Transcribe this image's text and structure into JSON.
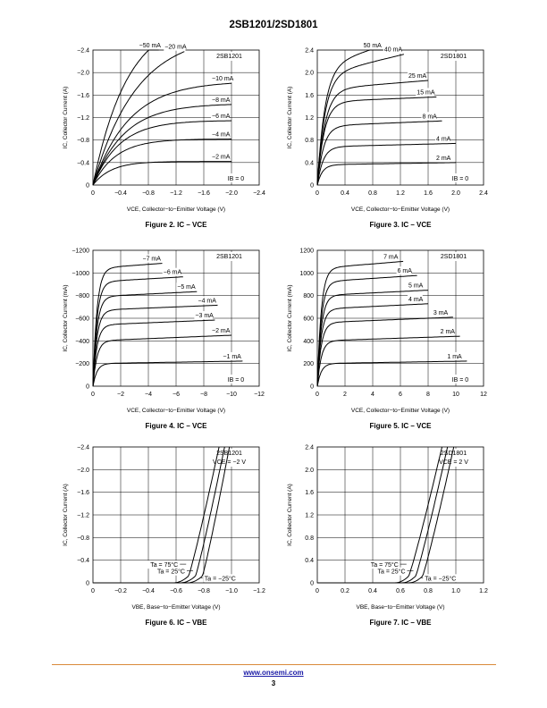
{
  "page": {
    "title": "2SB1201/2SD1801",
    "footer_link": "www.onsemi.com",
    "page_number": "3",
    "colors": {
      "footer_rule": "#d98a3a",
      "link": "#1a1aa6",
      "ink": "#000000"
    }
  },
  "chart_data": [
    {
      "type": "line",
      "id": "fig2",
      "title": "Figure 2. IC – VCE",
      "xlabel": "VCE, Collector−to−Emitter Voltage (V)",
      "ylabel": "IC, Collector Current (A)",
      "xlim": [
        0,
        -2.4
      ],
      "ylim": [
        0,
        -2.4
      ],
      "xticks": [
        0,
        -0.4,
        -0.8,
        -1.2,
        -1.6,
        -2.0,
        -2.4
      ],
      "yticks": [
        0,
        -0.4,
        -0.8,
        -1.2,
        -1.6,
        -2.0,
        -2.4
      ],
      "xtick_labels": [
        "0",
        "−0.4",
        "−0.8",
        "−1.2",
        "−1.6",
        "−2.0",
        "−2.4"
      ],
      "ytick_labels": [
        "0",
        "−0.4",
        "−0.8",
        "−1.2",
        "−1.6",
        "−2.0",
        "−2.4"
      ],
      "annotation": "2SB1201",
      "series": [
        {
          "name": "−50 mA",
          "shape": "ohmic",
          "sat": -3.0,
          "k": 2.0,
          "xend": -0.95
        },
        {
          "name": "−20 mA",
          "shape": "ohmic",
          "sat": -2.7,
          "k": 1.6,
          "xend": -1.32
        },
        {
          "name": "−10 mA",
          "shape": "ohmic",
          "sat": -1.85,
          "k": 1.9,
          "xend": -2.0
        },
        {
          "name": "−8 mA",
          "shape": "ohmic",
          "sat": -1.45,
          "k": 2.2,
          "xend": -2.0
        },
        {
          "name": "−6 mA",
          "shape": "ohmic",
          "sat": -1.15,
          "k": 2.6,
          "xend": -2.0
        },
        {
          "name": "−4 mA",
          "shape": "ohmic",
          "sat": -0.82,
          "k": 3.0,
          "xend": -2.0
        },
        {
          "name": "−2 mA",
          "shape": "ohmic",
          "sat": -0.42,
          "k": 3.8,
          "xend": -2.0
        }
      ],
      "extra_label": "IB = 0"
    },
    {
      "type": "line",
      "id": "fig3",
      "title": "Figure 3. IC – VCE",
      "xlabel": "VCE, Collector−to−Emitter Voltage (V)",
      "ylabel": "IC, Collector Current (A)",
      "xlim": [
        0,
        2.4
      ],
      "ylim": [
        0,
        2.4
      ],
      "xticks": [
        0,
        0.4,
        0.8,
        1.2,
        1.6,
        2.0,
        2.4
      ],
      "yticks": [
        0,
        0.4,
        0.8,
        1.2,
        1.6,
        2.0,
        2.4
      ],
      "xtick_labels": [
        "0",
        "0.4",
        "0.8",
        "1.2",
        "1.6",
        "2.0",
        "2.4"
      ],
      "ytick_labels": [
        "0",
        "0.4",
        "0.8",
        "1.2",
        "1.6",
        "2.0",
        "2.4"
      ],
      "annotation": "2SD1801",
      "series": [
        {
          "name": "50 mA",
          "shape": "knee",
          "sat": 2.1,
          "k": 9,
          "slope": 0.4,
          "xend": 0.95
        },
        {
          "name": "40 mA",
          "shape": "knee",
          "sat": 1.95,
          "k": 9,
          "slope": 0.3,
          "xend": 1.25
        },
        {
          "name": "25 mA",
          "shape": "knee",
          "sat": 1.7,
          "k": 9,
          "slope": 0.1,
          "xend": 1.6
        },
        {
          "name": "15 mA",
          "shape": "knee",
          "sat": 1.48,
          "k": 10,
          "slope": 0.05,
          "xend": 1.72
        },
        {
          "name": "8 mA",
          "shape": "knee",
          "sat": 1.05,
          "k": 11,
          "slope": 0.05,
          "xend": 1.8
        },
        {
          "name": "4 mA",
          "shape": "knee",
          "sat": 0.68,
          "k": 12,
          "slope": 0.03,
          "xend": 2.0
        },
        {
          "name": "2 mA",
          "shape": "knee",
          "sat": 0.36,
          "k": 14,
          "slope": 0.02,
          "xend": 2.0
        }
      ],
      "extra_label": "IB = 0"
    },
    {
      "type": "line",
      "id": "fig4",
      "title": "Figure 4. IC – VCE",
      "xlabel": "VCE, Collector−to−Emitter Voltage (V)",
      "ylabel": "IC, Collector Current (mA)",
      "xlim": [
        0,
        -12
      ],
      "ylim": [
        0,
        -1200
      ],
      "xticks": [
        0,
        -2,
        -4,
        -6,
        -8,
        -10,
        -12
      ],
      "yticks": [
        0,
        -200,
        -400,
        -600,
        -800,
        -1000,
        -1200
      ],
      "xtick_labels": [
        "0",
        "−2",
        "−4",
        "−6",
        "−8",
        "−10",
        "−12"
      ],
      "ytick_labels": [
        "0",
        "−200",
        "−400",
        "−600",
        "−800",
        "−1000",
        "−1200"
      ],
      "annotation": "2SB1201",
      "series": [
        {
          "name": "−7 mA",
          "shape": "knee",
          "sat": -1040,
          "k": 3.5,
          "slope": -9,
          "xend": -5.0
        },
        {
          "name": "−6 mA",
          "shape": "knee",
          "sat": -920,
          "k": 3.5,
          "slope": -7,
          "xend": -6.5
        },
        {
          "name": "−5 mA",
          "shape": "knee",
          "sat": -790,
          "k": 3.5,
          "slope": -6,
          "xend": -7.5
        },
        {
          "name": "−4 mA",
          "shape": "knee",
          "sat": -670,
          "k": 3.5,
          "slope": -5,
          "xend": -9.0
        },
        {
          "name": "−3 mA",
          "shape": "knee",
          "sat": -540,
          "k": 3.5,
          "slope": -5,
          "xend": -8.8
        },
        {
          "name": "−2 mA",
          "shape": "knee",
          "sat": -400,
          "k": 3.5,
          "slope": -5,
          "xend": -10.0
        },
        {
          "name": "−1 mA",
          "shape": "knee",
          "sat": -200,
          "k": 3.5,
          "slope": -2,
          "xend": -10.8
        }
      ],
      "extra_label": "IB = 0"
    },
    {
      "type": "line",
      "id": "fig5",
      "title": "Figure 5. IC – VCE",
      "xlabel": "VCE, Collector−to−Emitter Voltage (V)",
      "ylabel": "IC, Collector Current (mA)",
      "xlim": [
        0,
        12
      ],
      "ylim": [
        0,
        1200
      ],
      "xticks": [
        0,
        2,
        4,
        6,
        8,
        10,
        12
      ],
      "yticks": [
        0,
        200,
        400,
        600,
        800,
        1000,
        1200
      ],
      "xtick_labels": [
        "0",
        "2",
        "4",
        "6",
        "8",
        "10",
        "12"
      ],
      "ytick_labels": [
        "0",
        "200",
        "400",
        "600",
        "800",
        "1000",
        "1200"
      ],
      "annotation": "2SD1801",
      "series": [
        {
          "name": "7 mA",
          "shape": "knee",
          "sat": 1040,
          "k": 3.5,
          "slope": 10,
          "xend": 6.2
        },
        {
          "name": "6 mA",
          "shape": "knee",
          "sat": 920,
          "k": 3.5,
          "slope": 8,
          "xend": 7.2
        },
        {
          "name": "5 mA",
          "shape": "knee",
          "sat": 800,
          "k": 3.5,
          "slope": 6,
          "xend": 8.0
        },
        {
          "name": "4 mA",
          "shape": "knee",
          "sat": 680,
          "k": 3.5,
          "slope": 6,
          "xend": 8.0
        },
        {
          "name": "3 mA",
          "shape": "knee",
          "sat": 560,
          "k": 3.5,
          "slope": 5,
          "xend": 9.8
        },
        {
          "name": "2 mA",
          "shape": "knee",
          "sat": 400,
          "k": 3.5,
          "slope": 4,
          "xend": 10.3
        },
        {
          "name": "1 mA",
          "shape": "knee",
          "sat": 200,
          "k": 3.5,
          "slope": 2,
          "xend": 10.8
        }
      ],
      "extra_label": "IB = 0"
    },
    {
      "type": "line",
      "id": "fig6",
      "title": "Figure 6. IC – VBE",
      "xlabel": "VBE, Base−to−Emitter Voltage (V)",
      "ylabel": "IC, Collector Current (A)",
      "xlim": [
        0,
        -1.2
      ],
      "ylim": [
        0,
        -2.4
      ],
      "xticks": [
        0,
        -0.2,
        -0.4,
        -0.6,
        -0.8,
        -1.0,
        -1.2
      ],
      "yticks": [
        0,
        -0.4,
        -0.8,
        -1.2,
        -1.6,
        -2.0,
        -2.4
      ],
      "xtick_labels": [
        "0",
        "−0.2",
        "−0.4",
        "−0.6",
        "−0.8",
        "−1.0",
        "−1.2"
      ],
      "ytick_labels": [
        "0",
        "−0.4",
        "−0.8",
        "−1.2",
        "−1.6",
        "−2.0",
        "−2.4"
      ],
      "annotation": "2SB1201",
      "annotation2": "VCE = −2 V",
      "series": [
        {
          "name": "Ta = 75°C",
          "shape": "vbe",
          "x0": -0.58,
          "x1": -0.69,
          "x2": -0.91
        },
        {
          "name": "Ta = 25°C",
          "shape": "vbe",
          "x0": -0.63,
          "x1": -0.74,
          "x2": -0.95
        },
        {
          "name": "Ta = −25°C",
          "shape": "vbe",
          "x0": -0.68,
          "x1": -0.79,
          "x2": -0.985
        }
      ]
    },
    {
      "type": "line",
      "id": "fig7",
      "title": "Figure 7. IC – VBE",
      "xlabel": "VBE, Base−to−Emitter Voltage (V)",
      "ylabel": "IC, Collector Current (A)",
      "xlim": [
        0,
        1.2
      ],
      "ylim": [
        0,
        2.4
      ],
      "xticks": [
        0,
        0.2,
        0.4,
        0.6,
        0.8,
        1.0,
        1.2
      ],
      "yticks": [
        0,
        0.4,
        0.8,
        1.2,
        1.6,
        2.0,
        2.4
      ],
      "xtick_labels": [
        "0",
        "0.2",
        "0.4",
        "0.6",
        "0.8",
        "1.0",
        "1.2"
      ],
      "ytick_labels": [
        "0",
        "0.4",
        "0.8",
        "1.2",
        "1.6",
        "2.0",
        "2.4"
      ],
      "annotation": "2SD1801",
      "annotation2": "VCE = 2 V",
      "series": [
        {
          "name": "Ta = 75°C",
          "shape": "vbe",
          "x0": 0.56,
          "x1": 0.66,
          "x2": 0.9
        },
        {
          "name": "Ta = 25°C",
          "shape": "vbe",
          "x0": 0.61,
          "x1": 0.71,
          "x2": 0.94
        },
        {
          "name": "Ta = −25°C",
          "shape": "vbe",
          "x0": 0.66,
          "x1": 0.76,
          "x2": 0.985
        }
      ]
    }
  ]
}
